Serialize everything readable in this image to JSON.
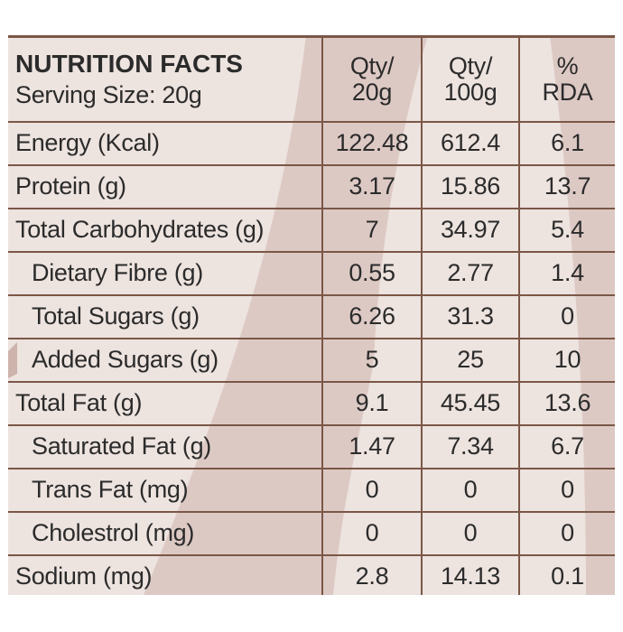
{
  "header": {
    "title": "NUTRITION FACTS",
    "serving": "Serving Size: 20g",
    "col1": {
      "line1": "Qty/",
      "line2": "20g"
    },
    "col2": {
      "line1": "Qty/",
      "line2": "100g"
    },
    "col3": {
      "line1": "%",
      "line2": "RDA"
    }
  },
  "rows": [
    {
      "label": "Energy (Kcal)",
      "qty20": "122.48",
      "qty100": "612.4",
      "rda": "6.1",
      "indent": false
    },
    {
      "label": "Protein (g)",
      "qty20": "3.17",
      "qty100": "15.86",
      "rda": "13.7",
      "indent": false
    },
    {
      "label": "Total Carbohydrates (g)",
      "qty20": "7",
      "qty100": "34.97",
      "rda": "5.4",
      "indent": false
    },
    {
      "label": "Dietary Fibre (g)",
      "qty20": "0.55",
      "qty100": "2.77",
      "rda": "1.4",
      "indent": true
    },
    {
      "label": "Total Sugars (g)",
      "qty20": "6.26",
      "qty100": "31.3",
      "rda": "0",
      "indent": true
    },
    {
      "label": "Added Sugars (g)",
      "qty20": "5",
      "qty100": "25",
      "rda": "10",
      "indent": true
    },
    {
      "label": "Total Fat (g)",
      "qty20": "9.1",
      "qty100": "45.45",
      "rda": "13.6",
      "indent": false
    },
    {
      "label": "Saturated Fat (g)",
      "qty20": "1.47",
      "qty100": "7.34",
      "rda": "6.7",
      "indent": true
    },
    {
      "label": "Trans Fat (mg)",
      "qty20": "0",
      "qty100": "0",
      "rda": "0",
      "indent": true
    },
    {
      "label": "Cholestrol (mg)",
      "qty20": "0",
      "qty100": "0",
      "rda": "0",
      "indent": true
    },
    {
      "label": "Sodium (mg)",
      "qty20": "2.8",
      "qty100": "14.13",
      "rda": "0.1",
      "indent": false
    }
  ],
  "colors": {
    "background": "#ede3df",
    "shape": "#ddc9c4",
    "border": "#7a5747",
    "text": "#2b2b2b"
  }
}
